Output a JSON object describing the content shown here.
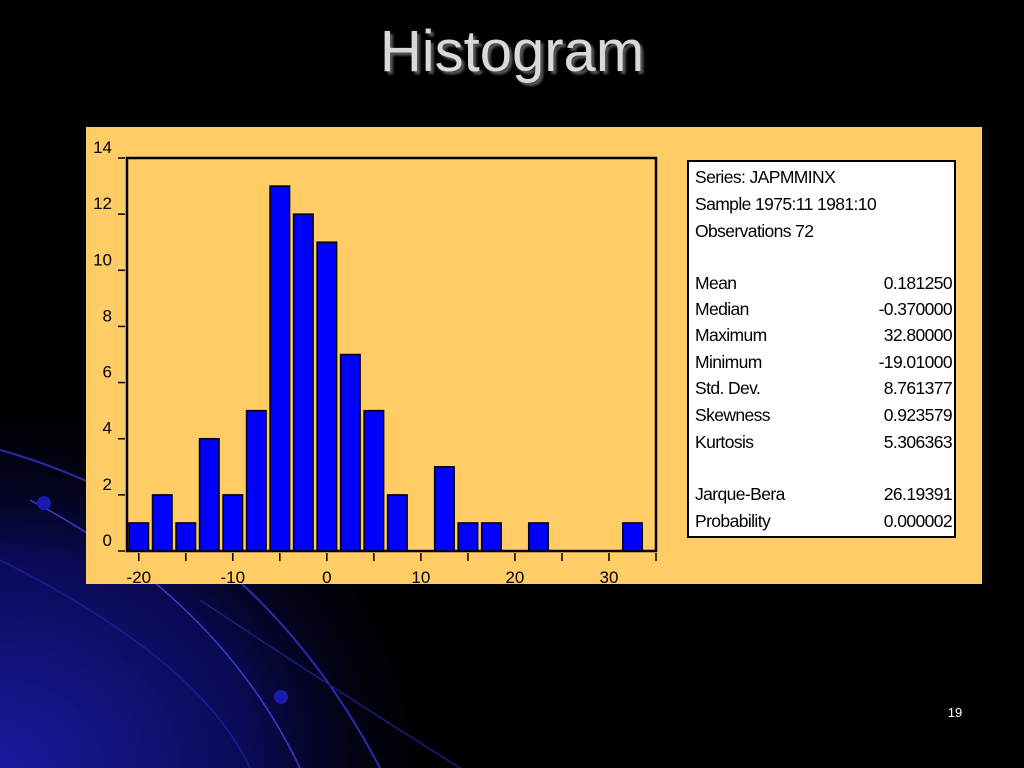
{
  "slide": {
    "title": "Histogram",
    "number": "19",
    "colors": {
      "background": "#000000",
      "accent": "#0000ff",
      "panel": "#ffcc66"
    }
  },
  "stats": {
    "series": "Series: JAPMMINX",
    "sample": "Sample 1975:11 1981:10",
    "observations": "Observations 72",
    "rows": [
      {
        "label": "Mean",
        "value": "0.181250"
      },
      {
        "label": "Median",
        "value": "-0.370000"
      },
      {
        "label": "Maximum",
        "value": "32.80000"
      },
      {
        "label": "Minimum",
        "value": "-19.01000"
      },
      {
        "label": "Std. Dev.",
        "value": "8.761377"
      },
      {
        "label": "Skewness",
        "value": "0.923579"
      },
      {
        "label": "Kurtosis",
        "value": "5.306363"
      },
      {
        "label": "Jarque-Bera",
        "value": "26.19391"
      },
      {
        "label": "Probability",
        "value": "0.000002"
      }
    ]
  },
  "chart_data": {
    "type": "bar",
    "x": [
      -20,
      -17.5,
      -15,
      -12.5,
      -10,
      -7.5,
      -5,
      -2.5,
      0,
      2.5,
      5,
      7.5,
      10,
      12.5,
      15,
      17.5,
      20,
      22.5,
      25,
      27.5,
      30,
      32.5
    ],
    "values": [
      1,
      2,
      1,
      4,
      2,
      5,
      13,
      12,
      11,
      7,
      5,
      2,
      0,
      3,
      1,
      1,
      0,
      1,
      0,
      0,
      0,
      1
    ],
    "bin_width": 2.5,
    "xlim": [
      -21.25,
      35
    ],
    "ylim": [
      0,
      14
    ],
    "xticks": [
      -20,
      -10,
      0,
      10,
      20,
      30
    ],
    "yticks": [
      0,
      2,
      4,
      6,
      8,
      10,
      12,
      14
    ],
    "bar_color": "#0000ff",
    "plot_background": "#ffcc66",
    "grid": false,
    "legend": "none"
  }
}
